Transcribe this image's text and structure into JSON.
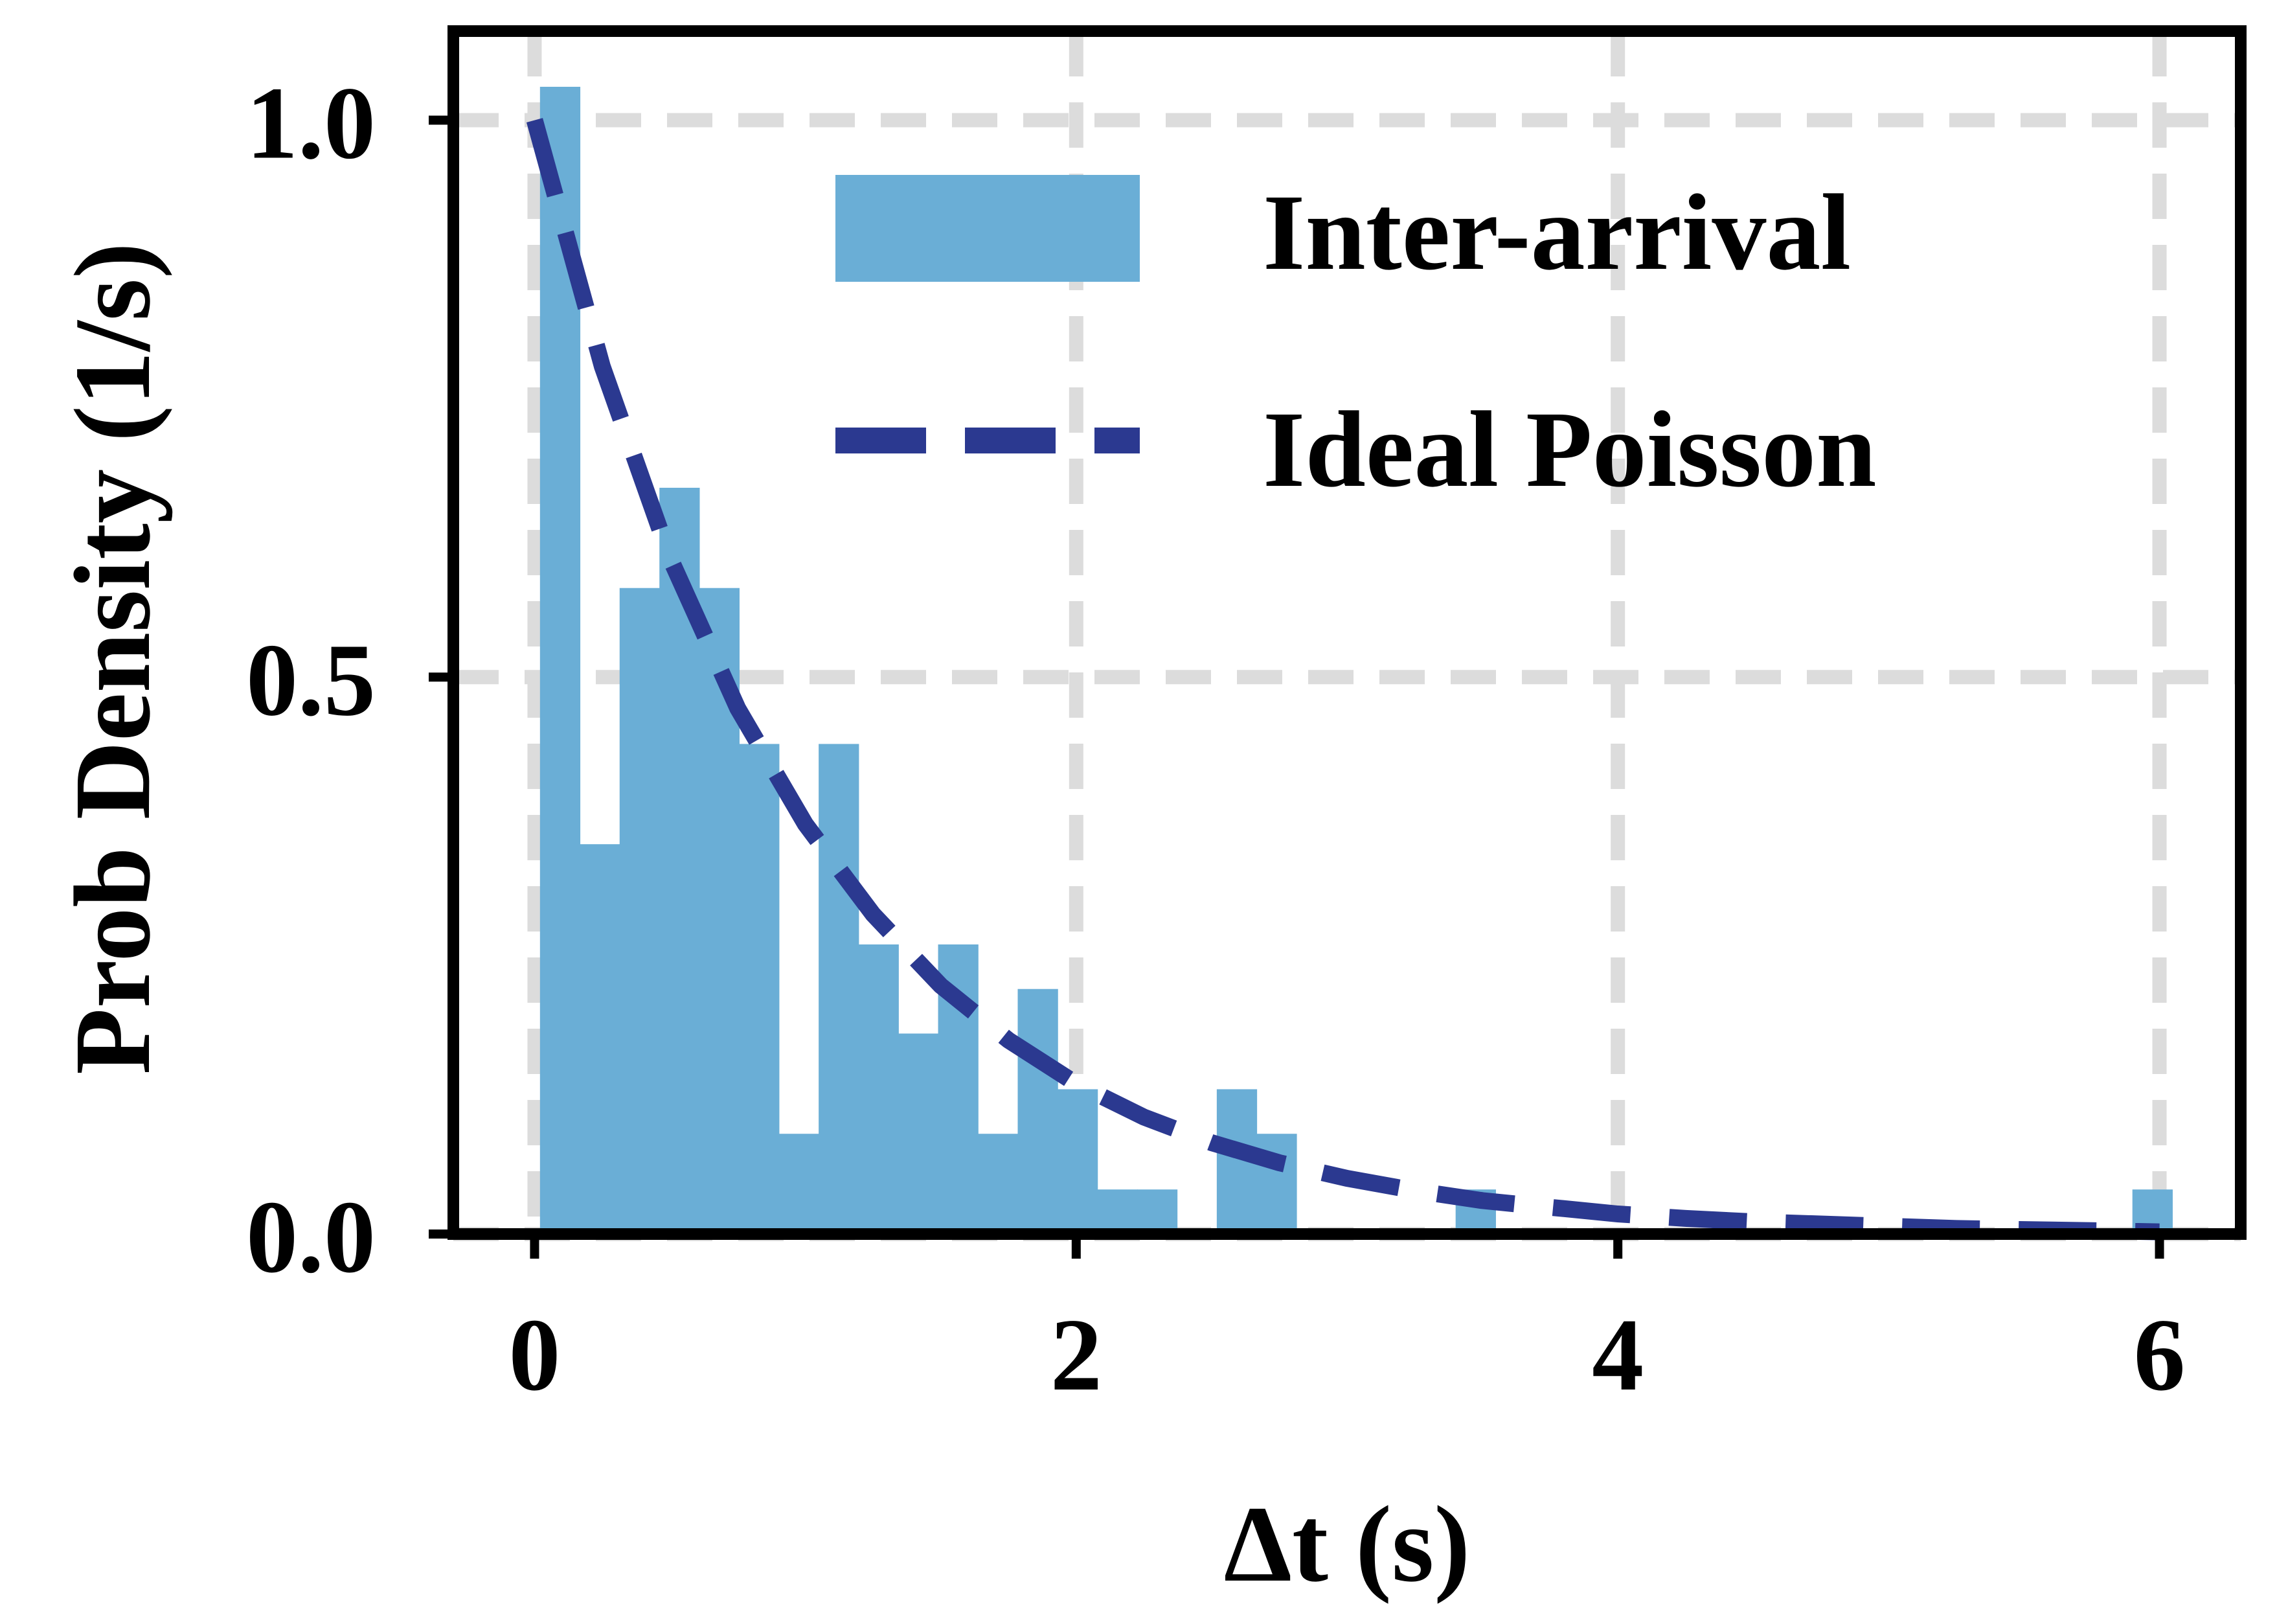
{
  "chart_data": {
    "type": "bar",
    "title": "",
    "xlabel": "Δt (s)",
    "ylabel": "Prob Density (1/s)",
    "xlim": [
      -0.3,
      6.3
    ],
    "ylim": [
      0.0,
      1.08
    ],
    "xticks": [
      0,
      2,
      4,
      6
    ],
    "yticks": [
      0.0,
      0.5,
      1.0
    ],
    "xtick_labels": [
      "0",
      "2",
      "4",
      "6"
    ],
    "ytick_labels": [
      "0.0",
      "0.5",
      "1.0"
    ],
    "grid": true,
    "legend_position": "top-right",
    "series": [
      {
        "name": "Inter-arrival",
        "type": "histogram",
        "color": "#6aaed6",
        "bin_width": 0.147,
        "bin_edges_start": 0.02,
        "values": [
          1.03,
          0.35,
          0.58,
          0.67,
          0.58,
          0.44,
          0.09,
          0.44,
          0.26,
          0.18,
          0.26,
          0.09,
          0.22,
          0.13,
          0.04,
          0.04,
          0.0,
          0.13,
          0.09,
          0.0,
          0.0,
          0.0,
          0.0,
          0.04,
          0.0,
          0.0,
          0.0,
          0.0,
          0.0,
          0.0,
          0.0,
          0.0,
          0.0,
          0.0,
          0.0,
          0.0,
          0.0,
          0.0,
          0.0,
          0.0,
          0.04
        ]
      },
      {
        "name": "Ideal Poisson",
        "type": "line",
        "style": "dashed",
        "color": "#2b3990",
        "rate": 1.0,
        "x": [
          0.0,
          0.25,
          0.5,
          0.75,
          1.0,
          1.25,
          1.5,
          1.75,
          2.0,
          2.25,
          2.5,
          2.75,
          3.0,
          3.25,
          3.5,
          3.75,
          4.0,
          4.25,
          4.5,
          4.75,
          5.0,
          5.25,
          5.5,
          5.75,
          6.0
        ],
        "y": [
          1.0,
          0.779,
          0.607,
          0.472,
          0.368,
          0.287,
          0.223,
          0.174,
          0.135,
          0.105,
          0.082,
          0.064,
          0.05,
          0.039,
          0.03,
          0.024,
          0.018,
          0.014,
          0.011,
          0.009,
          0.007,
          0.005,
          0.004,
          0.003,
          0.002
        ]
      }
    ]
  }
}
